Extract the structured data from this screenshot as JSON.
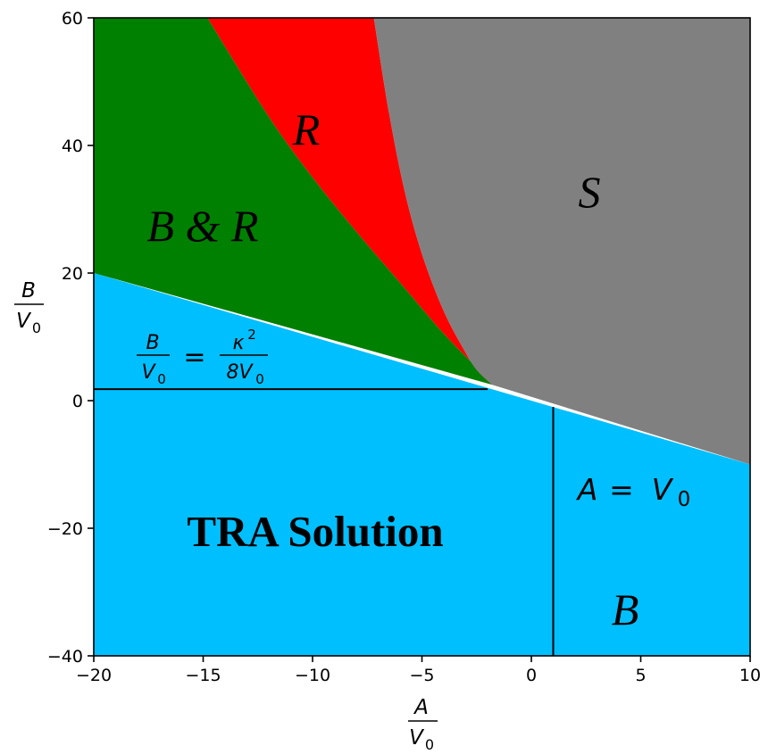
{
  "chart_data": {
    "type": "area",
    "xlim": [
      -20,
      10
    ],
    "ylim": [
      -40,
      60
    ],
    "x_ticks": [
      -20,
      -15,
      -10,
      -5,
      0,
      5,
      10
    ],
    "y_ticks": [
      -40,
      -20,
      0,
      20,
      40,
      60
    ],
    "x_tick_labels": [
      "−20",
      "−15",
      "−10",
      "−5",
      "0",
      "5",
      "10"
    ],
    "y_tick_labels": [
      "−40",
      "−20",
      "0",
      "20",
      "40",
      "60"
    ],
    "xlabel": {
      "num": "A",
      "den": "V",
      "den_sub": "0"
    },
    "ylabel": {
      "num": "B",
      "den": "V",
      "den_sub": "0"
    },
    "grid": false,
    "boundaries": {
      "tra_upper_line": {
        "x": [
          -20,
          10
        ],
        "y": [
          20,
          -10
        ]
      },
      "green_red_boundary": {
        "x": [
          -14.8,
          -12,
          -10,
          -8,
          -6,
          -4,
          -2.5,
          -1.8
        ],
        "y": [
          60,
          44.5,
          35,
          26.5,
          18.5,
          10.5,
          5.2,
          2.5
        ]
      },
      "red_gray_boundary": {
        "x": [
          -7.2,
          -6.5,
          -5.8,
          -5,
          -4,
          -3,
          -2.5,
          -1.8
        ],
        "y": [
          60,
          45,
          33,
          23,
          14,
          7.5,
          4.8,
          2.5
        ]
      },
      "horizontal_line": {
        "x": [
          -20,
          -2
        ],
        "y": [
          1.8,
          1.8
        ]
      },
      "vertical_line": {
        "x": [
          1,
          1
        ],
        "y": [
          -40,
          -1
        ]
      }
    },
    "regions": [
      {
        "name": "TRA Solution",
        "color": "#00bfff"
      },
      {
        "name": "B & R",
        "color": "#008000"
      },
      {
        "name": "R",
        "color": "#ff0000"
      },
      {
        "name": "S",
        "color": "#808080"
      },
      {
        "name": "B",
        "color": "#00bfff"
      }
    ],
    "annotations": {
      "tra_solution": "TRA Solution",
      "b_and_r": "B & R",
      "r": "R",
      "s": "S",
      "b": "B",
      "a_eq_v0": {
        "lhs": "A",
        "op": "=",
        "rhs": "V",
        "rhs_sub": "0"
      },
      "kappa_eq": {
        "lhs_num": "B",
        "lhs_den": "V",
        "lhs_den_sub": "0",
        "op": "=",
        "rhs_num": "κ",
        "rhs_num_sup": "2",
        "rhs_den": "8V",
        "rhs_den_sub": "0"
      }
    }
  }
}
